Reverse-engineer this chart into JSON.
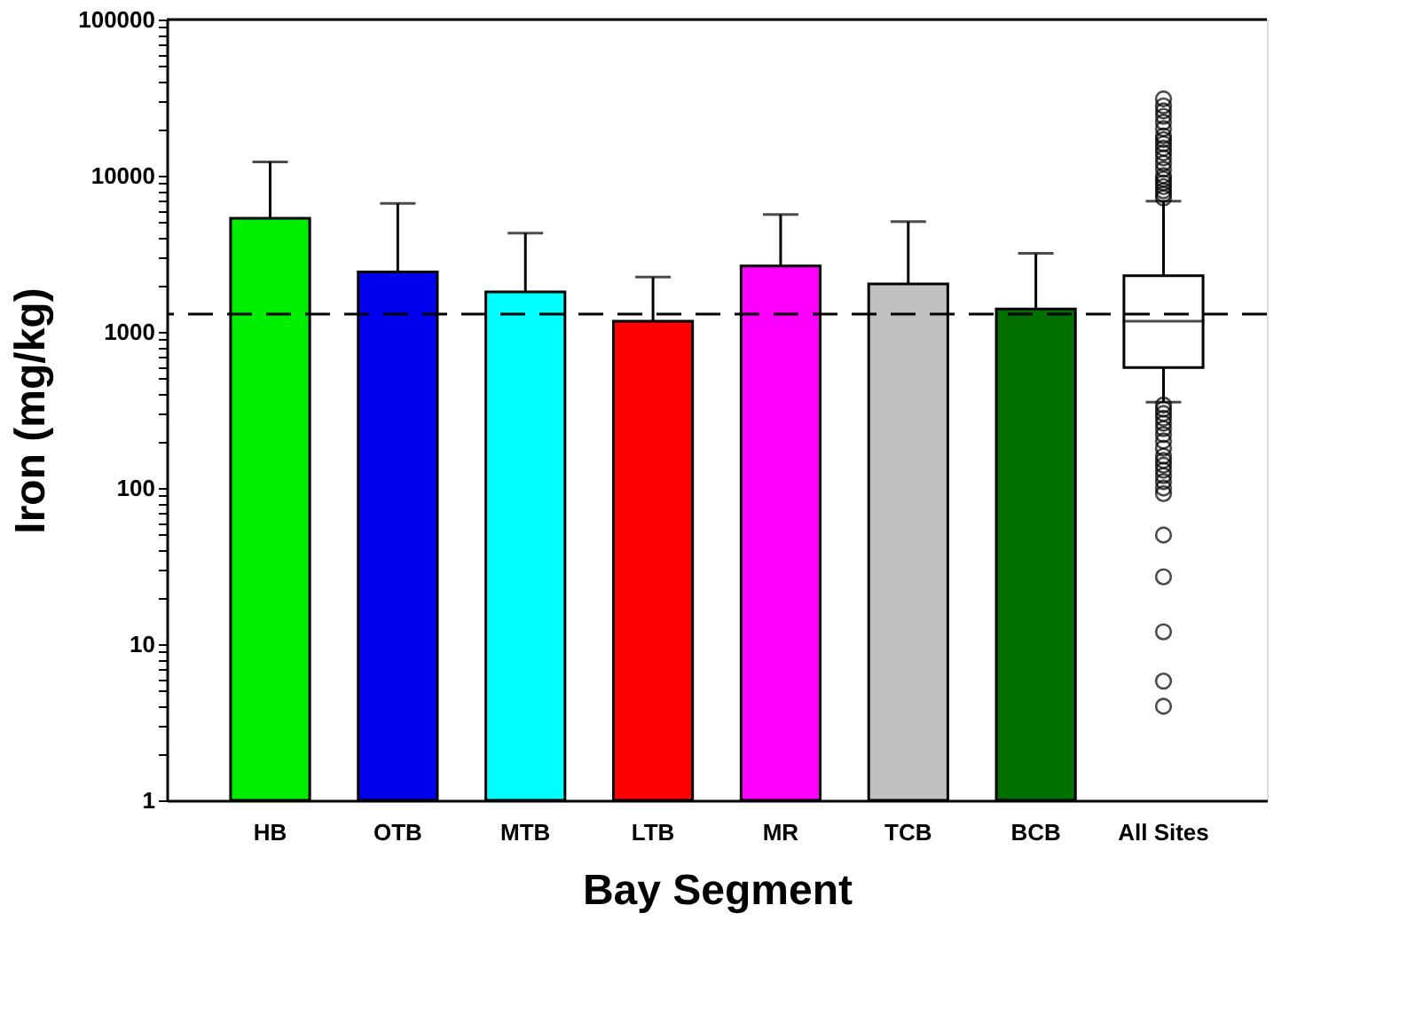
{
  "chart_data": {
    "type": "bar",
    "xlabel": "Bay Segment",
    "ylabel": "Iron (mg/kg)",
    "categories": [
      "HB",
      "OTB",
      "MTB",
      "LTB",
      "MR",
      "TCB",
      "BCB",
      "All Sites"
    ],
    "log": "y",
    "grid": false,
    "ylim": [
      1,
      100000
    ],
    "yticks": [
      1,
      {
        "value": 2,
        "label": null
      },
      {
        "value": 3,
        "label": null
      },
      {
        "value": 4,
        "label": null
      },
      {
        "value": 5,
        "label": null
      },
      {
        "value": 6,
        "label": null
      },
      {
        "value": 7,
        "label": null
      },
      {
        "value": 8,
        "label": null
      },
      {
        "value": 9,
        "label": null
      },
      10,
      {
        "value": 20,
        "label": null
      },
      {
        "value": 30,
        "label": null
      },
      {
        "value": 40,
        "label": null
      },
      {
        "value": 50,
        "label": null
      },
      {
        "value": 60,
        "label": null
      },
      {
        "value": 70,
        "label": null
      },
      {
        "value": 80,
        "label": null
      },
      {
        "value": 90,
        "label": null
      },
      100,
      {
        "value": 200,
        "label": null
      },
      {
        "value": 300,
        "label": null
      },
      {
        "value": 400,
        "label": null
      },
      {
        "value": 500,
        "label": null
      },
      {
        "value": 600,
        "label": null
      },
      {
        "value": 700,
        "label": null
      },
      {
        "value": 800,
        "label": null
      },
      {
        "value": 900,
        "label": null
      },
      1000,
      {
        "value": 2000,
        "label": null
      },
      {
        "value": 3000,
        "label": null
      },
      {
        "value": 4000,
        "label": null
      },
      {
        "value": 5000,
        "label": null
      },
      {
        "value": 6000,
        "label": null
      },
      {
        "value": 7000,
        "label": null
      },
      {
        "value": 8000,
        "label": null
      },
      {
        "value": 9000,
        "label": null
      },
      10000,
      {
        "value": 20000,
        "label": null
      },
      {
        "value": 30000,
        "label": null
      },
      {
        "value": 40000,
        "label": null
      },
      {
        "value": 50000,
        "label": null
      },
      {
        "value": 60000,
        "label": null
      },
      {
        "value": 70000,
        "label": null
      },
      {
        "value": 80000,
        "label": null
      },
      {
        "value": 90000,
        "label": null
      },
      100000
    ],
    "ref_lines": [
      {
        "axis": "y",
        "value": 1300,
        "line_style": "dashed",
        "color": "#000000"
      }
    ],
    "series": [
      {
        "colors": [
          "#00ee00",
          "#0000ee",
          "#00ffff",
          "#ff0000",
          "#ff00ff",
          "#c0c0c0",
          "#007000",
          null
        ],
        "values": [
          5330,
          2420,
          1800,
          1170,
          2640,
          2030,
          1400,
          null
        ],
        "errors": [
          [
            5330,
            12250
          ],
          [
            2420,
            6650
          ],
          [
            1800,
            4280
          ],
          [
            1170,
            2240
          ],
          [
            2640,
            5640
          ],
          [
            2030,
            5080
          ],
          [
            1400,
            3180
          ],
          null
        ]
      },
      {
        "type": "box",
        "color": "#ffffff",
        "boxes": [
          null,
          null,
          null,
          null,
          null,
          null,
          null,
          {
            "low": 355,
            "q1": 590,
            "median": 1170,
            "q3": 2290,
            "high": 6870,
            "outliers": [
              7200,
              7600,
              8000,
              8500,
              9000,
              9500,
              10000,
              11000,
              12000,
              13000,
              14000,
              15000,
              16000,
              17000,
              18000,
              20000,
              22000,
              24000,
              26000,
              28000,
              31000,
              340,
              320,
              300,
              280,
              260,
              240,
              220,
              200,
              180,
              160,
              150,
              140,
              130,
              120,
              110,
              100,
              92,
              50,
              27,
              12,
              5.8,
              4
            ]
          }
        ]
      }
    ]
  }
}
